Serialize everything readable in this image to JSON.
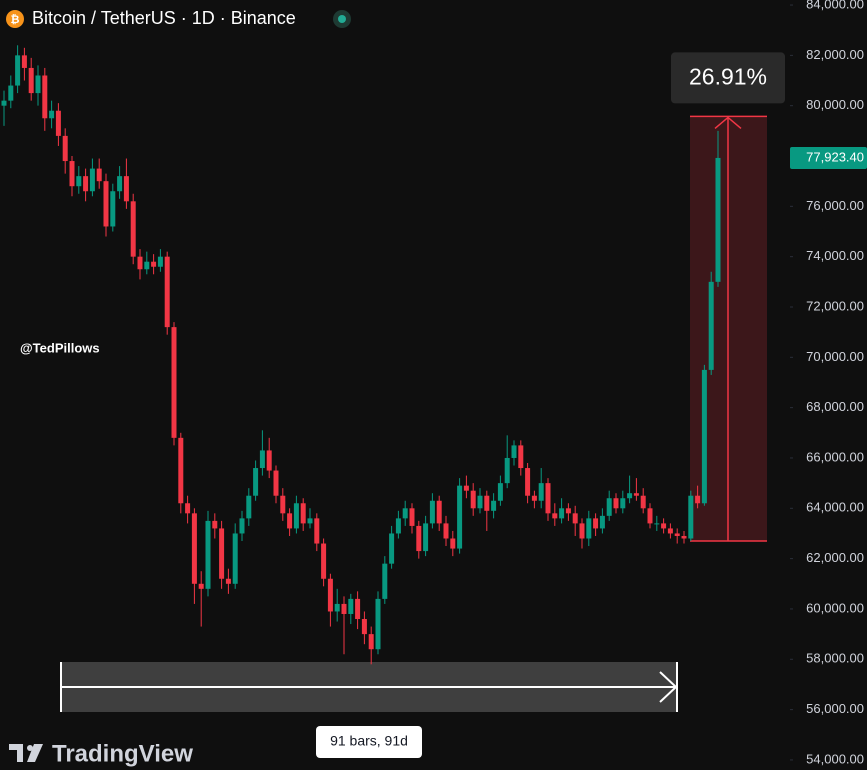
{
  "chart_data": {
    "type": "candlestick",
    "title": "Bitcoin / TetherUS · 1D · Binance",
    "watermark": "@TedPillows",
    "branding": "TradingView",
    "up_color": "#089981",
    "down_color": "#f23645",
    "grid": false,
    "ylim": [
      53600,
      84200
    ],
    "yticks": [
      {
        "value": 84000,
        "label": "84,000.00"
      },
      {
        "value": 82000,
        "label": "82,000.00"
      },
      {
        "value": 80000,
        "label": "80,000.00"
      },
      {
        "value": 78000,
        "label": "78,000.00"
      },
      {
        "value": 76000,
        "label": "76,000.00"
      },
      {
        "value": 74000,
        "label": "74,000.00"
      },
      {
        "value": 72000,
        "label": "72,000.00"
      },
      {
        "value": 70000,
        "label": "70,000.00"
      },
      {
        "value": 68000,
        "label": "68,000.00"
      },
      {
        "value": 66000,
        "label": "66,000.00"
      },
      {
        "value": 64000,
        "label": "64,000.00"
      },
      {
        "value": 62000,
        "label": "62,000.00"
      },
      {
        "value": 60000,
        "label": "60,000.00"
      },
      {
        "value": 58000,
        "label": "58,000.00"
      },
      {
        "value": 56000,
        "label": "56,000.00"
      },
      {
        "value": 54000,
        "label": "54,000.00"
      }
    ],
    "last_price": {
      "value": 77923.4,
      "label": "77,923.40"
    },
    "price_range": {
      "from": 62700,
      "to": 79573,
      "change": {
        "value": 26.91,
        "label": "26.91%"
      }
    },
    "date_range": {
      "label": "91 bars, 91d"
    },
    "ohlc": [
      [
        80000,
        80600,
        79200,
        80200
      ],
      [
        80200,
        81200,
        79900,
        80800
      ],
      [
        80800,
        82400,
        80500,
        82000
      ],
      [
        82000,
        82300,
        81000,
        81500
      ],
      [
        81500,
        81900,
        80200,
        80500
      ],
      [
        80500,
        81600,
        80000,
        81200
      ],
      [
        81200,
        81500,
        79000,
        79500
      ],
      [
        79500,
        80200,
        79100,
        79800
      ],
      [
        79800,
        80100,
        78400,
        78800
      ],
      [
        78800,
        79100,
        77300,
        77800
      ],
      [
        77800,
        78000,
        76400,
        76800
      ],
      [
        76800,
        77600,
        76500,
        77200
      ],
      [
        77200,
        77500,
        76200,
        76600
      ],
      [
        76600,
        77900,
        76400,
        77500
      ],
      [
        77500,
        77900,
        76700,
        77000
      ],
      [
        77000,
        77300,
        74800,
        75200
      ],
      [
        75200,
        76900,
        75000,
        76600
      ],
      [
        76600,
        77600,
        76300,
        77200
      ],
      [
        77200,
        77900,
        75900,
        76200
      ],
      [
        76200,
        76500,
        73700,
        74000
      ],
      [
        74000,
        74300,
        73100,
        73500
      ],
      [
        73500,
        74200,
        73300,
        73800
      ],
      [
        73800,
        74100,
        73300,
        73600
      ],
      [
        73600,
        74300,
        73400,
        74000
      ],
      [
        74000,
        74200,
        70900,
        71200
      ],
      [
        71200,
        71400,
        66500,
        66800
      ],
      [
        66800,
        67000,
        63800,
        64200
      ],
      [
        64200,
        64500,
        63400,
        63800
      ],
      [
        63800,
        64000,
        60200,
        61000
      ],
      [
        61000,
        61500,
        59300,
        60800
      ],
      [
        60800,
        63900,
        60500,
        63500
      ],
      [
        63500,
        63800,
        62800,
        63200
      ],
      [
        63200,
        63500,
        60800,
        61200
      ],
      [
        61200,
        61600,
        60600,
        61000
      ],
      [
        61000,
        63400,
        60800,
        63000
      ],
      [
        63000,
        63900,
        62700,
        63600
      ],
      [
        63600,
        64800,
        63300,
        64500
      ],
      [
        64500,
        65900,
        64300,
        65600
      ],
      [
        65600,
        67100,
        65300,
        66300
      ],
      [
        66300,
        66800,
        65200,
        65500
      ],
      [
        65500,
        65700,
        64200,
        64500
      ],
      [
        64500,
        64800,
        63500,
        63800
      ],
      [
        63800,
        64000,
        62900,
        63200
      ],
      [
        63200,
        64500,
        63000,
        64200
      ],
      [
        64200,
        64400,
        63100,
        63400
      ],
      [
        63400,
        64000,
        63200,
        63600
      ],
      [
        63600,
        63800,
        62300,
        62600
      ],
      [
        62600,
        62800,
        60900,
        61200
      ],
      [
        61200,
        61400,
        59300,
        59900
      ],
      [
        59900,
        60800,
        59500,
        60200
      ],
      [
        60200,
        60500,
        58200,
        59800
      ],
      [
        59800,
        60600,
        59400,
        60400
      ],
      [
        60400,
        60700,
        59200,
        59600
      ],
      [
        59600,
        59900,
        58600,
        59000
      ],
      [
        59000,
        59300,
        57800,
        58400
      ],
      [
        58400,
        60700,
        58200,
        60400
      ],
      [
        60400,
        62100,
        60200,
        61800
      ],
      [
        61800,
        63300,
        61600,
        63000
      ],
      [
        63000,
        63900,
        62800,
        63600
      ],
      [
        63600,
        64300,
        63300,
        64000
      ],
      [
        64000,
        64200,
        63000,
        63300
      ],
      [
        63300,
        63500,
        62000,
        62300
      ],
      [
        62300,
        63700,
        62100,
        63400
      ],
      [
        63400,
        64600,
        63200,
        64300
      ],
      [
        64300,
        64500,
        63100,
        63400
      ],
      [
        63400,
        63700,
        62500,
        62800
      ],
      [
        62800,
        63100,
        62100,
        62400
      ],
      [
        62400,
        65200,
        62200,
        64900
      ],
      [
        64900,
        65300,
        64400,
        64700
      ],
      [
        64700,
        65000,
        63700,
        64000
      ],
      [
        64000,
        64800,
        63800,
        64500
      ],
      [
        64500,
        64700,
        63100,
        63900
      ],
      [
        63900,
        64600,
        63600,
        64300
      ],
      [
        64300,
        65300,
        64100,
        65000
      ],
      [
        65000,
        66900,
        64800,
        66000
      ],
      [
        66000,
        66700,
        65700,
        66500
      ],
      [
        66500,
        66700,
        65300,
        65600
      ],
      [
        65600,
        65800,
        64200,
        64500
      ],
      [
        64500,
        64700,
        64000,
        64300
      ],
      [
        64300,
        65600,
        64000,
        65000
      ],
      [
        65000,
        65200,
        63500,
        63800
      ],
      [
        63800,
        64200,
        63300,
        63600
      ],
      [
        63600,
        64400,
        63400,
        64000
      ],
      [
        64000,
        64200,
        63500,
        63800
      ],
      [
        63800,
        64100,
        62900,
        63400
      ],
      [
        63400,
        63600,
        62400,
        62800
      ],
      [
        62800,
        63900,
        62500,
        63600
      ],
      [
        63600,
        63800,
        62900,
        63200
      ],
      [
        63200,
        64000,
        63000,
        63700
      ],
      [
        63700,
        64700,
        63500,
        64400
      ],
      [
        64400,
        64600,
        63800,
        64000
      ],
      [
        64000,
        64700,
        63800,
        64400
      ],
      [
        64400,
        65300,
        64200,
        64600
      ],
      [
        64600,
        65200,
        64300,
        64500
      ],
      [
        64500,
        64800,
        63800,
        64000
      ],
      [
        64000,
        64200,
        63200,
        63400
      ],
      [
        63400,
        63700,
        63100,
        63400
      ],
      [
        63400,
        63600,
        63000,
        63200
      ],
      [
        63200,
        63400,
        62800,
        63000
      ],
      [
        63000,
        63200,
        62600,
        62900
      ],
      [
        62900,
        63100,
        62600,
        62800
      ],
      [
        62800,
        64700,
        62700,
        64500
      ],
      [
        64500,
        64900,
        64000,
        64200
      ],
      [
        64200,
        69700,
        64100,
        69500
      ],
      [
        69500,
        73400,
        69300,
        73000
      ],
      [
        73000,
        79000,
        72800,
        77923.4
      ]
    ]
  }
}
